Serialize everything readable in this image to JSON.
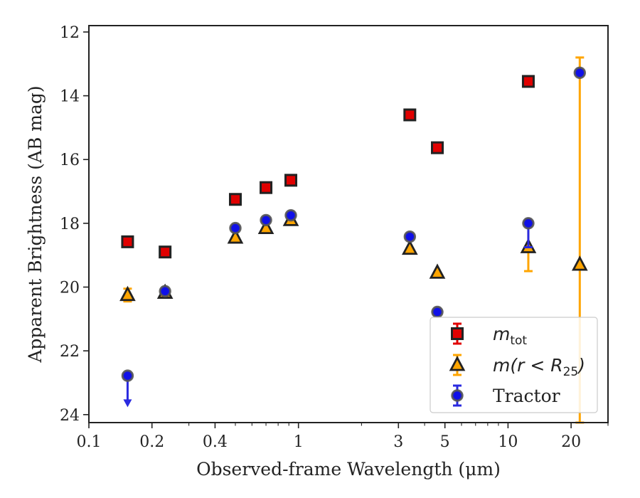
{
  "chart_data": {
    "type": "scatter",
    "xlabel": "Observed-frame Wavelength (μm)",
    "ylabel": "Apparent Brightness (AB mag)",
    "xscale": "log",
    "xlim": [
      0.1,
      30
    ],
    "ylim": [
      24.25,
      11.8
    ],
    "y_inverted": true,
    "grid": false,
    "legend_position": "lower-right",
    "x_ticks": [
      {
        "value": 0.1,
        "label": "0.1"
      },
      {
        "value": 0.2,
        "label": "0.2"
      },
      {
        "value": 0.4,
        "label": "0.4"
      },
      {
        "value": 1,
        "label": "1"
      },
      {
        "value": 3,
        "label": "3"
      },
      {
        "value": 5,
        "label": "5"
      },
      {
        "value": 10,
        "label": "10"
      },
      {
        "value": 20,
        "label": "20"
      }
    ],
    "y_ticks": [
      {
        "value": 12,
        "label": "12"
      },
      {
        "value": 14,
        "label": "14"
      },
      {
        "value": 16,
        "label": "16"
      },
      {
        "value": 18,
        "label": "18"
      },
      {
        "value": 20,
        "label": "20"
      },
      {
        "value": 22,
        "label": "22"
      },
      {
        "value": 24,
        "label": "24"
      }
    ],
    "series": [
      {
        "name": "m_tot",
        "legend_main": "m",
        "legend_sub": "tot",
        "marker": "square",
        "color": "#e00000",
        "edge_color": "#222222",
        "error_color": "#e00000",
        "points": [
          {
            "x": 0.153,
            "y": 18.58
          },
          {
            "x": 0.231,
            "y": 18.9
          },
          {
            "x": 0.5,
            "y": 17.25
          },
          {
            "x": 0.7,
            "y": 16.88
          },
          {
            "x": 0.92,
            "y": 16.65
          },
          {
            "x": 3.4,
            "y": 14.6
          },
          {
            "x": 4.6,
            "y": 15.63
          },
          {
            "x": 12.5,
            "y": 13.55
          }
        ]
      },
      {
        "name": "m(r<R25)",
        "legend_main": "m(r < R",
        "legend_sub": "25",
        "legend_tail": ")",
        "marker": "triangle",
        "color": "#ffa500",
        "edge_color": "#222222",
        "error_color": "#ffa500",
        "points": [
          {
            "x": 0.153,
            "y": 20.25,
            "err_lo": 20.05,
            "err_hi": 20.45
          },
          {
            "x": 0.231,
            "y": 20.18
          },
          {
            "x": 0.5,
            "y": 18.45
          },
          {
            "x": 0.7,
            "y": 18.15
          },
          {
            "x": 0.92,
            "y": 17.9
          },
          {
            "x": 3.4,
            "y": 18.8
          },
          {
            "x": 4.6,
            "y": 19.55
          },
          {
            "x": 12.5,
            "y": 18.75,
            "err_lo": 18.0,
            "err_hi": 19.5
          },
          {
            "x": 22,
            "y": 19.3,
            "err_lo": 12.8,
            "err_hi": 24.25
          }
        ]
      },
      {
        "name": "Tractor",
        "legend_main": "Tractor",
        "marker": "circle",
        "color": "#1010e8",
        "edge_color": "#555555",
        "error_color": "#2a2ae0",
        "points": [
          {
            "x": 0.153,
            "y": 22.78,
            "upper_limit_to": 23.7
          },
          {
            "x": 0.231,
            "y": 20.13
          },
          {
            "x": 0.5,
            "y": 18.15
          },
          {
            "x": 0.7,
            "y": 17.9
          },
          {
            "x": 0.92,
            "y": 17.75
          },
          {
            "x": 3.4,
            "y": 18.42
          },
          {
            "x": 4.6,
            "y": 20.78
          },
          {
            "x": 12.5,
            "y": 18.0,
            "err_lo": 18.0,
            "err_hi": 18.75
          },
          {
            "x": 22,
            "y": 13.28
          }
        ]
      }
    ]
  }
}
